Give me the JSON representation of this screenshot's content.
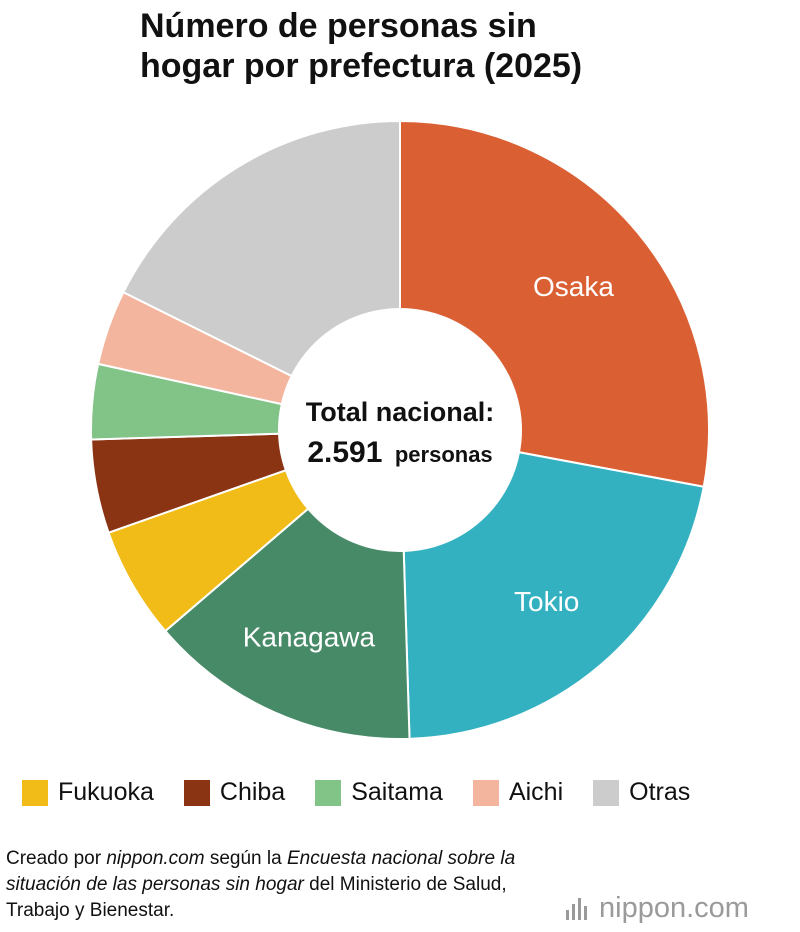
{
  "title": "Número de personas sin\nhogar por prefectura (2025)",
  "center": {
    "line1": "Total nacional:",
    "number": "2.591",
    "unit": "personas"
  },
  "chart_data": {
    "type": "pie",
    "donut": true,
    "title": "Número de personas sin hogar por prefectura (2025)",
    "total": 2591,
    "slices": [
      {
        "label": "Osaka",
        "value": 28.5,
        "color": "#DA6033",
        "label_on_chart": true
      },
      {
        "label": "Tokio",
        "value": 22.0,
        "color": "#34B1C1",
        "label_on_chart": true
      },
      {
        "label": "Kanagawa",
        "value": 14.5,
        "color": "#478A68",
        "label_on_chart": true
      },
      {
        "label": "Fukuoka",
        "value": 6.0,
        "color": "#F1BC18",
        "label_on_chart": false
      },
      {
        "label": "Chiba",
        "value": 5.0,
        "color": "#8A3414",
        "label_on_chart": false
      },
      {
        "label": "Saitama",
        "value": 4.0,
        "color": "#82C387",
        "label_on_chart": false
      },
      {
        "label": "Aichi",
        "value": 4.0,
        "color": "#F3B59E",
        "label_on_chart": false
      },
      {
        "label": "Otras",
        "value": 18.0,
        "color": "#CCCCCC",
        "label_on_chart": false
      }
    ],
    "legend": [
      "Fukuoka",
      "Chiba",
      "Saitama",
      "Aichi",
      "Otras"
    ],
    "legend_position": "bottom"
  },
  "source": {
    "p1": "Creado por ",
    "site": "nippon.com",
    "p2": " según la ",
    "survey": "Encuesta nacional sobre la situación de las personas sin hogar",
    "p3": " del Ministerio de Salud, Trabajo y Bienestar."
  },
  "logo": {
    "text": "nippon.com",
    "icon": "nippon-bars-icon"
  }
}
